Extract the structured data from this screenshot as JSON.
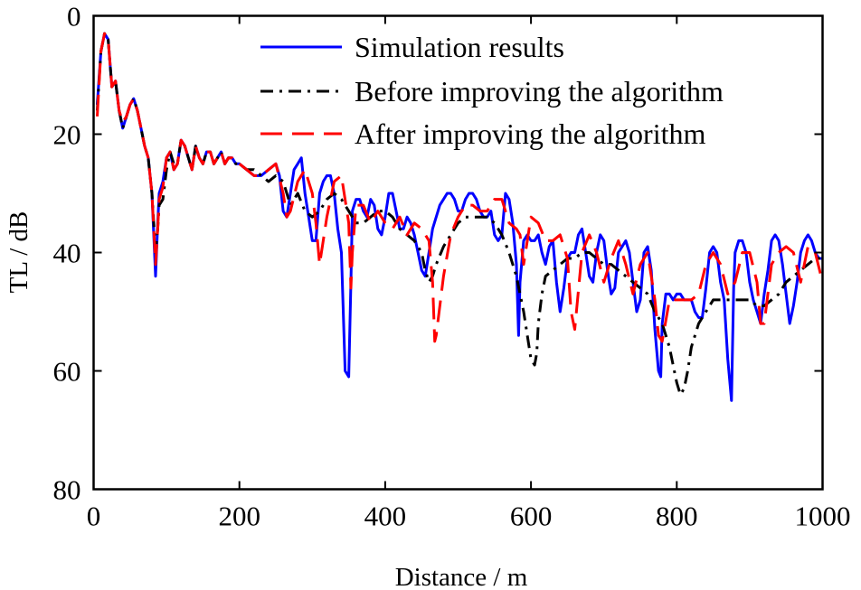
{
  "chart_data": {
    "type": "line",
    "title": "",
    "xlabel": "Distance / m",
    "ylabel": "TL / dB",
    "xlim": [
      0,
      1000
    ],
    "ylim": [
      0,
      80
    ],
    "y_reversed": true,
    "xticks": [
      0,
      200,
      400,
      600,
      800,
      1000
    ],
    "yticks": [
      0,
      20,
      40,
      60,
      80
    ],
    "grid": false,
    "legend_position": "top-right",
    "series": [
      {
        "name": "Simulation results",
        "color": "#0000ff",
        "dash": "solid",
        "x": [
          5,
          10,
          15,
          20,
          25,
          30,
          35,
          40,
          45,
          50,
          55,
          60,
          65,
          70,
          75,
          80,
          85,
          88,
          90,
          95,
          100,
          105,
          110,
          115,
          120,
          125,
          130,
          135,
          140,
          145,
          150,
          155,
          160,
          165,
          170,
          175,
          180,
          185,
          190,
          195,
          200,
          210,
          220,
          230,
          240,
          250,
          255,
          260,
          265,
          270,
          275,
          280,
          285,
          290,
          295,
          300,
          305,
          310,
          315,
          320,
          325,
          330,
          335,
          340,
          345,
          350,
          353,
          355,
          360,
          365,
          370,
          375,
          380,
          385,
          390,
          395,
          400,
          405,
          410,
          415,
          420,
          425,
          430,
          435,
          440,
          445,
          450,
          455,
          460,
          465,
          470,
          475,
          480,
          485,
          490,
          495,
          500,
          505,
          510,
          515,
          520,
          525,
          530,
          535,
          540,
          545,
          550,
          555,
          560,
          565,
          570,
          575,
          580,
          583,
          585,
          590,
          595,
          600,
          605,
          610,
          615,
          620,
          625,
          630,
          635,
          640,
          645,
          650,
          655,
          660,
          665,
          670,
          675,
          680,
          685,
          690,
          695,
          700,
          705,
          710,
          715,
          720,
          725,
          730,
          735,
          740,
          745,
          750,
          755,
          760,
          765,
          770,
          775,
          778,
          780,
          785,
          790,
          795,
          800,
          805,
          810,
          815,
          820,
          825,
          830,
          835,
          840,
          845,
          850,
          855,
          860,
          865,
          870,
          875,
          878,
          880,
          885,
          890,
          895,
          900,
          905,
          910,
          915,
          920,
          925,
          930,
          935,
          940,
          945,
          950,
          955,
          960,
          965,
          970,
          975,
          980,
          985,
          990,
          995,
          1000
        ],
        "y": [
          15,
          6,
          3,
          4,
          12,
          11,
          16,
          19,
          17,
          15,
          14,
          16,
          19,
          22,
          24,
          30,
          44,
          35,
          30,
          28,
          24,
          23,
          26,
          25,
          21,
          22,
          24,
          26,
          22,
          24,
          25,
          23,
          23,
          25,
          24,
          23,
          25,
          24,
          24,
          25,
          25,
          26,
          27,
          27,
          26,
          25,
          27,
          33,
          34,
          30,
          26,
          25,
          24,
          30,
          34,
          38,
          38,
          30,
          28,
          27,
          27,
          30,
          36,
          40,
          60,
          61,
          45,
          33,
          31,
          31,
          33,
          34,
          31,
          32,
          36,
          37,
          34,
          30,
          30,
          33,
          36,
          36,
          34,
          35,
          37,
          40,
          43,
          44,
          40,
          36,
          34,
          32,
          31,
          30,
          30,
          31,
          33,
          33,
          31,
          30,
          30,
          31,
          33,
          34,
          34,
          33,
          37,
          38,
          37,
          30,
          31,
          35,
          42,
          54,
          45,
          38,
          37,
          38,
          38,
          37,
          40,
          42,
          39,
          38,
          45,
          50,
          46,
          41,
          40,
          40,
          37,
          36,
          40,
          44,
          45,
          40,
          37,
          38,
          43,
          47,
          46,
          40,
          39,
          38,
          40,
          45,
          50,
          48,
          40,
          39,
          43,
          53,
          60,
          61,
          52,
          47,
          47,
          48,
          47,
          47,
          48,
          48,
          48,
          50,
          51,
          51,
          46,
          40,
          39,
          40,
          45,
          48,
          58,
          65,
          46,
          40,
          38,
          38,
          40,
          45,
          48,
          50,
          52,
          47,
          43,
          38,
          37,
          38,
          42,
          47,
          52,
          49,
          45,
          40,
          38,
          37,
          38,
          40,
          41,
          41
        ]
      },
      {
        "name": "Before improving the algorithm",
        "color": "#000000",
        "dash": "dash-dot",
        "x": [
          5,
          10,
          15,
          20,
          25,
          30,
          35,
          40,
          45,
          50,
          55,
          60,
          65,
          70,
          75,
          80,
          85,
          88,
          90,
          95,
          100,
          105,
          110,
          115,
          120,
          125,
          130,
          135,
          140,
          145,
          150,
          155,
          160,
          165,
          170,
          175,
          180,
          185,
          190,
          195,
          200,
          210,
          220,
          230,
          240,
          250,
          260,
          270,
          280,
          290,
          300,
          310,
          320,
          330,
          340,
          350,
          360,
          370,
          380,
          390,
          400,
          410,
          420,
          430,
          440,
          450,
          455,
          460,
          465,
          470,
          480,
          490,
          500,
          510,
          520,
          530,
          540,
          550,
          560,
          570,
          580,
          590,
          600,
          605,
          608,
          610,
          615,
          620,
          630,
          640,
          650,
          660,
          670,
          680,
          690,
          700,
          710,
          720,
          730,
          740,
          750,
          760,
          770,
          780,
          790,
          800,
          805,
          810,
          815,
          820,
          830,
          840,
          850,
          860,
          870,
          880,
          890,
          900,
          910,
          920,
          930,
          940,
          950,
          960,
          970,
          980,
          990,
          1000
        ],
        "y": [
          16,
          6,
          3,
          4,
          12,
          11,
          16,
          19,
          17,
          15,
          14,
          16,
          19,
          22,
          24,
          30,
          40,
          36,
          32,
          31,
          26,
          23,
          25,
          25,
          21,
          22,
          24,
          26,
          22,
          24,
          25,
          23,
          23,
          25,
          24,
          23,
          25,
          24,
          24,
          25,
          25,
          26,
          26,
          27,
          28,
          27,
          28,
          32,
          30,
          33,
          34,
          33,
          31,
          30,
          31,
          33,
          35,
          35,
          34,
          33,
          33,
          34,
          36,
          37,
          38,
          40,
          43,
          45,
          44,
          42,
          39,
          37,
          35,
          34,
          34,
          34,
          34,
          35,
          37,
          40,
          44,
          50,
          58,
          59,
          57,
          52,
          47,
          44,
          43,
          42,
          41,
          41,
          40,
          40,
          41,
          42,
          42,
          43,
          44,
          45,
          46,
          47,
          50,
          52,
          56,
          62,
          64,
          63,
          60,
          56,
          52,
          50,
          48,
          48,
          48,
          48,
          48,
          48,
          49,
          49,
          48,
          47,
          45,
          44,
          43,
          42,
          41,
          41
        ]
      },
      {
        "name": "After improving the algorithm",
        "color": "#ff0000",
        "dash": "dashed",
        "x": [
          5,
          10,
          15,
          20,
          25,
          30,
          35,
          40,
          45,
          50,
          55,
          60,
          65,
          70,
          75,
          80,
          85,
          88,
          90,
          95,
          100,
          105,
          110,
          115,
          120,
          125,
          130,
          135,
          140,
          145,
          150,
          155,
          160,
          165,
          170,
          175,
          180,
          185,
          190,
          195,
          200,
          210,
          220,
          230,
          240,
          250,
          260,
          265,
          270,
          280,
          290,
          300,
          305,
          310,
          320,
          330,
          340,
          350,
          353,
          355,
          360,
          370,
          380,
          390,
          400,
          410,
          420,
          430,
          440,
          450,
          460,
          465,
          468,
          470,
          480,
          490,
          500,
          510,
          520,
          530,
          540,
          550,
          560,
          570,
          580,
          585,
          590,
          600,
          610,
          620,
          630,
          640,
          650,
          655,
          660,
          670,
          680,
          690,
          700,
          710,
          720,
          730,
          740,
          750,
          760,
          770,
          775,
          780,
          790,
          800,
          810,
          820,
          830,
          840,
          850,
          860,
          870,
          880,
          890,
          900,
          910,
          915,
          920,
          930,
          940,
          950,
          960,
          970,
          980,
          990,
          1000
        ],
        "y": [
          17,
          6,
          3,
          4,
          12,
          11,
          16,
          18,
          17,
          15,
          14,
          16,
          19,
          22,
          24,
          30,
          42,
          36,
          31,
          29,
          24,
          23,
          26,
          25,
          21,
          22,
          24,
          26,
          22,
          24,
          25,
          23,
          23,
          25,
          24,
          23,
          25,
          24,
          24,
          25,
          25,
          26,
          27,
          27,
          26,
          25,
          30,
          34,
          33,
          28,
          26,
          30,
          35,
          42,
          34,
          28,
          27,
          35,
          46,
          40,
          32,
          32,
          35,
          33,
          35,
          36,
          34,
          37,
          35,
          36,
          38,
          45,
          55,
          54,
          44,
          37,
          34,
          32,
          32,
          33,
          33,
          31,
          31,
          35,
          36,
          37,
          42,
          34,
          35,
          38,
          38,
          37,
          41,
          50,
          53,
          40,
          37,
          40,
          45,
          41,
          38,
          42,
          47,
          42,
          40,
          48,
          54,
          55,
          48,
          48,
          48,
          48,
          47,
          42,
          40,
          42,
          47,
          45,
          40,
          40,
          45,
          52,
          52,
          42,
          40,
          39,
          40,
          45,
          39,
          40,
          45
        ]
      }
    ]
  }
}
